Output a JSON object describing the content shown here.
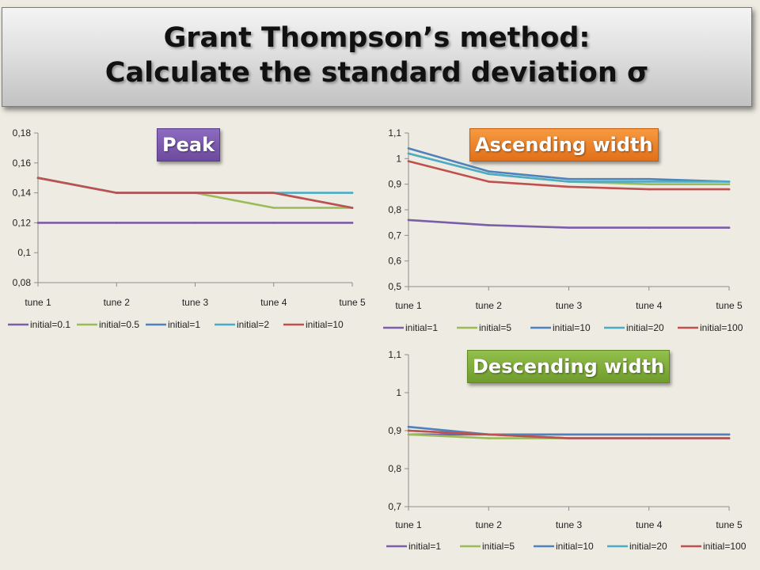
{
  "title": {
    "line1": "Grant Thompson’s method:",
    "line2": "Calculate the standard deviation σ"
  },
  "colors": {
    "purple": "#7a5ea8",
    "green": "#9bbb59",
    "blue": "#4f81bd",
    "cyan": "#4bacc6",
    "red": "#c0504d"
  },
  "chart_data": [
    {
      "type": "line",
      "title": "Peak",
      "categories": [
        "tune 1",
        "tune 2",
        "tune 3",
        "tune 4",
        "tune 5"
      ],
      "yticks": [
        "0,08",
        "0,1",
        "0,12",
        "0,14",
        "0,16",
        "0,18"
      ],
      "ylim": [
        0.08,
        0.18
      ],
      "legend_position": "bottom",
      "series": [
        {
          "name": "initial=0.1",
          "color": "#7a5ea8",
          "values": [
            0.12,
            0.12,
            0.12,
            0.12,
            0.12
          ]
        },
        {
          "name": "initial=0.5",
          "color": "#9bbb59",
          "values": [
            0.15,
            0.14,
            0.14,
            0.13,
            0.13
          ]
        },
        {
          "name": "initial=1",
          "color": "#4f81bd",
          "values": [
            0.15,
            0.14,
            0.14,
            0.14,
            0.13
          ]
        },
        {
          "name": "initial=2",
          "color": "#4bacc6",
          "values": [
            0.15,
            0.14,
            0.14,
            0.14,
            0.14
          ]
        },
        {
          "name": "initial=10",
          "color": "#c0504d",
          "values": [
            0.15,
            0.14,
            0.14,
            0.14,
            0.13
          ]
        }
      ]
    },
    {
      "type": "line",
      "title": "Ascending width",
      "categories": [
        "tune 1",
        "tune 2",
        "tune 3",
        "tune 4",
        "tune 5"
      ],
      "yticks": [
        "0,5",
        "0,6",
        "0,7",
        "0,8",
        "0,9",
        "1",
        "1,1"
      ],
      "ylim": [
        0.5,
        1.1
      ],
      "legend_position": "bottom",
      "series": [
        {
          "name": "initial=1",
          "color": "#7a5ea8",
          "values": [
            0.76,
            0.74,
            0.73,
            0.73,
            0.73
          ]
        },
        {
          "name": "initial=5",
          "color": "#9bbb59",
          "values": [
            1.02,
            0.94,
            0.91,
            0.9,
            0.9
          ]
        },
        {
          "name": "initial=10",
          "color": "#4f81bd",
          "values": [
            1.04,
            0.95,
            0.92,
            0.92,
            0.91
          ]
        },
        {
          "name": "initial=20",
          "color": "#4bacc6",
          "values": [
            1.02,
            0.94,
            0.91,
            0.91,
            0.91
          ]
        },
        {
          "name": "initial=100",
          "color": "#c0504d",
          "values": [
            0.99,
            0.91,
            0.89,
            0.88,
            0.88
          ]
        }
      ]
    },
    {
      "type": "line",
      "title": "Descending width",
      "categories": [
        "tune 1",
        "tune 2",
        "tune 3",
        "tune 4",
        "tune 5"
      ],
      "yticks": [
        "0,7",
        "0,8",
        "0,9",
        "1",
        "1,1"
      ],
      "ylim": [
        0.7,
        1.1
      ],
      "legend_position": "bottom",
      "series": [
        {
          "name": "initial=1",
          "color": "#7a5ea8",
          "values": [
            0.89,
            0.89,
            0.89,
            0.89,
            0.89
          ]
        },
        {
          "name": "initial=5",
          "color": "#9bbb59",
          "values": [
            0.89,
            0.88,
            0.88,
            0.88,
            0.88
          ]
        },
        {
          "name": "initial=10",
          "color": "#4f81bd",
          "values": [
            0.91,
            0.89,
            0.89,
            0.89,
            0.89
          ]
        },
        {
          "name": "initial=20",
          "color": "#4bacc6",
          "values": [
            0.9,
            0.89,
            0.88,
            0.88,
            0.88
          ]
        },
        {
          "name": "initial=100",
          "color": "#c0504d",
          "values": [
            0.9,
            0.89,
            0.88,
            0.88,
            0.88
          ]
        }
      ]
    }
  ]
}
